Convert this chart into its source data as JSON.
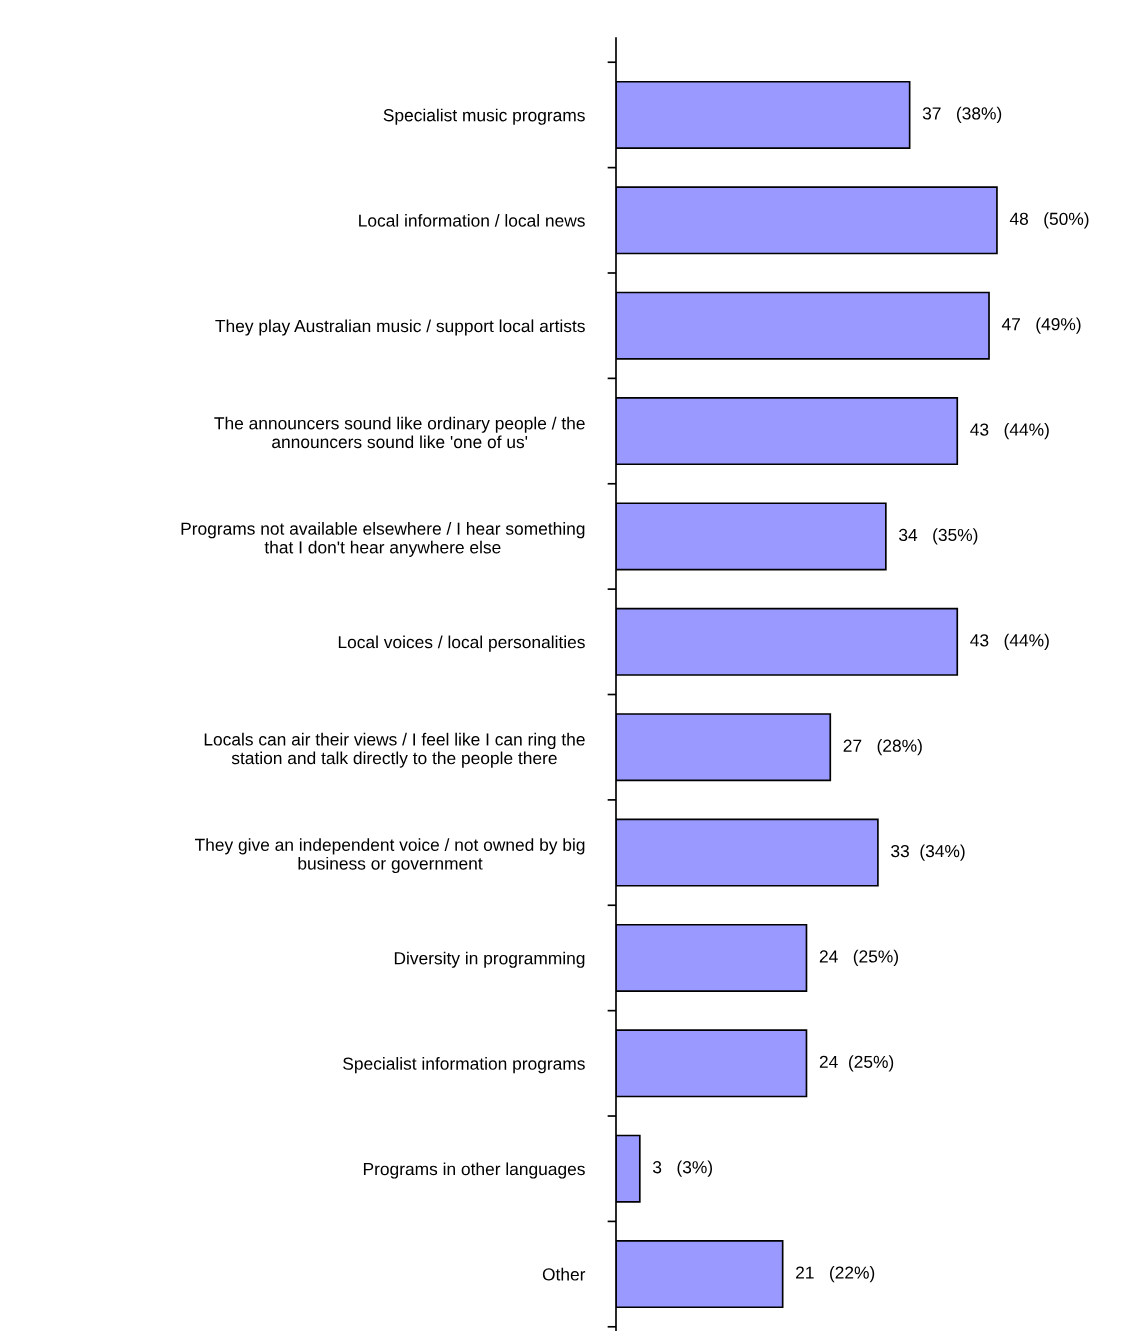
{
  "chart_data": {
    "type": "bar",
    "orientation": "horizontal",
    "categories": [
      "Specialist music programs",
      "Local information / local news",
      "They play Australian music / support local artists",
      "The announcers sound like ordinary people / the\nannouncers sound like 'one of us'",
      "Programs not available elsewhere / I hear something\nthat I don't hear anywhere else",
      "Local voices / local personalities",
      "Locals can air their views / I feel like I can ring the\nstation and talk directly to the people there",
      "They give an independent voice / not owned by big\nbusiness or government",
      "Diversity in programming",
      "Specialist information programs",
      "Programs in other languages",
      "Other"
    ],
    "values": [
      37,
      48,
      47,
      43,
      34,
      43,
      27,
      33,
      24,
      24,
      3,
      21
    ],
    "value_labels": [
      "37   (38%)",
      "48   (50%)",
      "47   (49%)",
      "43   (44%)",
      "34   (35%)",
      "43   (44%)",
      "27   (28%)",
      "33  (34%)",
      "24   (25%)",
      "24  (25%)",
      "3   (3%)",
      "21   (22%)"
    ],
    "color": "#9999ff",
    "grid": false,
    "legend": false
  }
}
